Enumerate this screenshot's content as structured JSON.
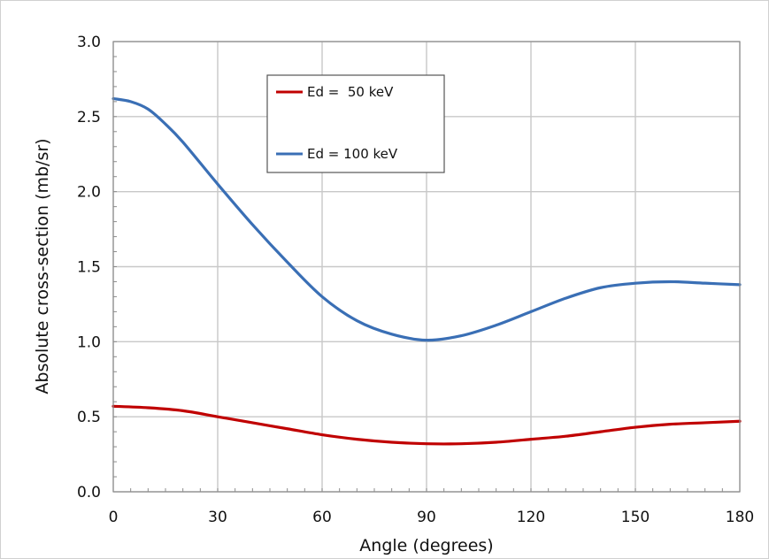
{
  "chart_data": {
    "type": "line",
    "title": "",
    "xlabel": "Angle (degrees)",
    "ylabel": "Absolute cross-section (mb/sr)",
    "xlim": [
      0,
      180
    ],
    "ylim": [
      0.0,
      3.0
    ],
    "xticks": [
      0,
      30,
      60,
      90,
      120,
      150,
      180
    ],
    "xtick_labels": [
      "0",
      "30",
      "60",
      "90",
      "120",
      "150",
      "180"
    ],
    "yticks": [
      0.0,
      0.5,
      1.0,
      1.5,
      2.0,
      2.5,
      3.0
    ],
    "ytick_labels": [
      "0.0",
      "0.5",
      "1.0",
      "1.5",
      "2.0",
      "2.5",
      "3.0"
    ],
    "grid": true,
    "legend_position": "top-center",
    "series": [
      {
        "name": "Ed =  50 keV",
        "color": "#c00000",
        "x": [
          0,
          10,
          20,
          30,
          40,
          50,
          60,
          70,
          80,
          90,
          100,
          110,
          120,
          130,
          140,
          150,
          160,
          170,
          180
        ],
        "y": [
          0.57,
          0.56,
          0.54,
          0.5,
          0.46,
          0.42,
          0.38,
          0.35,
          0.33,
          0.32,
          0.32,
          0.33,
          0.35,
          0.37,
          0.4,
          0.43,
          0.45,
          0.46,
          0.47
        ]
      },
      {
        "name": "Ed = 100 keV",
        "color": "#3a6fb5",
        "x": [
          0,
          5,
          10,
          15,
          20,
          30,
          40,
          50,
          60,
          70,
          80,
          90,
          100,
          110,
          120,
          130,
          140,
          150,
          160,
          170,
          180
        ],
        "y": [
          2.62,
          2.6,
          2.55,
          2.45,
          2.33,
          2.05,
          1.78,
          1.53,
          1.3,
          1.14,
          1.05,
          1.01,
          1.04,
          1.11,
          1.2,
          1.29,
          1.36,
          1.39,
          1.4,
          1.39,
          1.38
        ]
      }
    ]
  }
}
